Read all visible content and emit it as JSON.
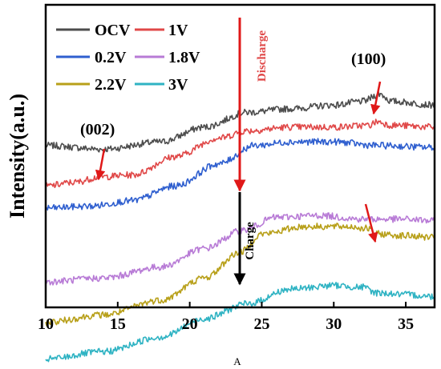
{
  "chart_data": {
    "type": "line",
    "title": "",
    "xlabel": "",
    "ylabel": "Intensity(a.u.)",
    "xlim": [
      10,
      37
    ],
    "xticks": [
      10,
      15,
      20,
      25,
      30,
      35
    ],
    "yticks_visible": false,
    "grid": false,
    "legend_position": "top-left",
    "series": [
      {
        "name": "OCV",
        "color": "#4d4d4d",
        "points": [
          [
            10,
            0.17
          ],
          [
            14,
            0.16
          ],
          [
            18,
            0.18
          ],
          [
            21,
            0.22
          ],
          [
            24,
            0.26
          ],
          [
            27,
            0.27
          ],
          [
            30,
            0.28
          ],
          [
            32,
            0.29
          ],
          [
            33.2,
            0.31
          ],
          [
            34,
            0.29
          ],
          [
            37,
            0.28
          ]
        ]
      },
      {
        "name": "1V",
        "color": "#e04848",
        "points": [
          [
            10,
            0.06
          ],
          [
            12,
            0.07
          ],
          [
            13.8,
            0.085
          ],
          [
            16,
            0.09
          ],
          [
            19,
            0.14
          ],
          [
            22,
            0.19
          ],
          [
            24,
            0.21
          ],
          [
            27,
            0.22
          ],
          [
            30,
            0.22
          ],
          [
            32.5,
            0.225
          ],
          [
            33,
            0.235
          ],
          [
            34,
            0.225
          ],
          [
            37,
            0.22
          ]
        ]
      },
      {
        "name": "0.2V",
        "color": "#2f5fcf",
        "points": [
          [
            10,
            0.0
          ],
          [
            13,
            0.005
          ],
          [
            16,
            0.02
          ],
          [
            19,
            0.06
          ],
          [
            22,
            0.12
          ],
          [
            24.5,
            0.17
          ],
          [
            27,
            0.18
          ],
          [
            30,
            0.18
          ],
          [
            33,
            0.17
          ],
          [
            37,
            0.165
          ]
        ]
      },
      {
        "name": "1.8V",
        "color": "#b87bd6",
        "points": [
          [
            10,
            -0.2
          ],
          [
            14,
            -0.19
          ],
          [
            18,
            -0.16
          ],
          [
            21,
            -0.11
          ],
          [
            23.7,
            -0.06
          ],
          [
            26,
            -0.025
          ],
          [
            29,
            -0.02
          ],
          [
            32,
            -0.03
          ],
          [
            35,
            -0.03
          ],
          [
            37,
            -0.035
          ]
        ]
      },
      {
        "name": "2.2V",
        "color": "#b8a01a",
        "points": [
          [
            10,
            -0.31
          ],
          [
            14,
            -0.29
          ],
          [
            18,
            -0.25
          ],
          [
            21,
            -0.19
          ],
          [
            23.5,
            -0.12
          ],
          [
            25,
            -0.07
          ],
          [
            28,
            -0.05
          ],
          [
            31,
            -0.05
          ],
          [
            32.3,
            -0.055
          ],
          [
            33,
            -0.07
          ],
          [
            35,
            -0.075
          ],
          [
            37,
            -0.08
          ]
        ]
      },
      {
        "name": "3V",
        "color": "#2fb3c3",
        "points": [
          [
            10,
            -0.41
          ],
          [
            14,
            -0.39
          ],
          [
            18,
            -0.35
          ],
          [
            21,
            -0.3
          ],
          [
            24,
            -0.26
          ],
          [
            27,
            -0.22
          ],
          [
            30,
            -0.21
          ],
          [
            32,
            -0.215
          ],
          [
            33,
            -0.23
          ],
          [
            35,
            -0.235
          ],
          [
            37,
            -0.24
          ]
        ]
      }
    ],
    "annotations": [
      {
        "text": "(002)",
        "x": 14,
        "y": 0.085
      },
      {
        "text": "(100)",
        "x": 33.2,
        "y": 0.31
      },
      {
        "text": "Discharge",
        "color": "#e04848"
      },
      {
        "text": "Charge",
        "color": "#000000"
      }
    ]
  },
  "caption": "A"
}
